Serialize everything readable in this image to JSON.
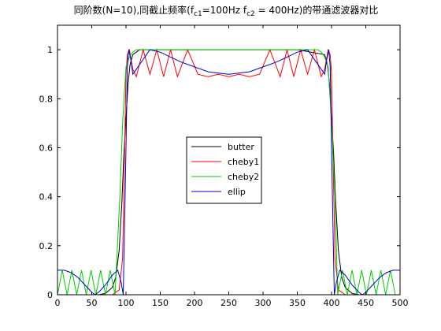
{
  "chart_data": {
    "type": "line",
    "title": {
      "prefix": "同阶数(N=10),同截止频率(f",
      "sub1": "c1",
      "mid": "=100Hz f",
      "sub2": "c2",
      "suffix": " = 400Hz)的带通滤波器对比"
    },
    "xlabel": "",
    "ylabel": "",
    "xlim": [
      0,
      500
    ],
    "ylim": [
      0,
      1.1
    ],
    "xticks": [
      0,
      50,
      100,
      150,
      200,
      250,
      300,
      350,
      400,
      450,
      500
    ],
    "yticks": [
      0,
      0.2,
      0.4,
      0.6,
      0.8,
      1
    ],
    "ytick_labels": [
      "0",
      "0.2",
      "0.4",
      "0.6",
      "0.8",
      "1"
    ],
    "grid": false,
    "legend": {
      "position": "center",
      "entries": [
        "butter",
        "cheby1",
        "cheby2",
        "ellip"
      ]
    },
    "filter_params": {
      "order": 10,
      "fc1": 100,
      "fc2": 400
    },
    "series": [
      {
        "name": "butter",
        "color": "#000000",
        "x": [
          0,
          60,
          70,
          80,
          85,
          90,
          94,
          97,
          100,
          103,
          106,
          110,
          120,
          150,
          250,
          350,
          390,
          394,
          397,
          400,
          403,
          406,
          410,
          415,
          420,
          430,
          440,
          500
        ],
        "y": [
          0,
          0,
          0.005,
          0.03,
          0.07,
          0.18,
          0.38,
          0.58,
          0.72,
          0.86,
          0.94,
          0.98,
          1,
          1,
          1,
          1,
          0.98,
          0.94,
          0.86,
          0.72,
          0.58,
          0.38,
          0.18,
          0.07,
          0.03,
          0.005,
          0,
          0
        ]
      },
      {
        "name": "cheby1",
        "color": "#ff0000",
        "x": [
          0,
          80,
          90,
          95,
          98,
          100,
          102,
          105,
          110,
          115,
          125,
          135,
          145,
          155,
          165,
          175,
          190,
          205,
          220,
          235,
          250,
          265,
          280,
          295,
          310,
          325,
          335,
          345,
          355,
          365,
          375,
          385,
          390,
          395,
          398,
          400,
          402,
          405,
          410,
          420,
          500
        ],
        "y": [
          0,
          0,
          0.02,
          0.15,
          0.6,
          0.9,
          0.98,
          1,
          0.92,
          0.89,
          1,
          0.9,
          1,
          0.89,
          1,
          0.89,
          1,
          0.9,
          0.89,
          0.9,
          0.89,
          0.9,
          0.89,
          0.9,
          1,
          0.89,
          1,
          0.89,
          1,
          0.9,
          1,
          0.89,
          0.92,
          1,
          0.98,
          0.9,
          0.6,
          0.15,
          0.02,
          0,
          0
        ]
      },
      {
        "name": "cheby2",
        "color": "#00cc00",
        "x": [
          0,
          7,
          14,
          21,
          28,
          35,
          42,
          49,
          56,
          63,
          70,
          77,
          84,
          91,
          95,
          100,
          105,
          110,
          115,
          120,
          150,
          250,
          350,
          380,
          385,
          390,
          395,
          400,
          405,
          409,
          416,
          423,
          430,
          437,
          444,
          451,
          458,
          465,
          472,
          479,
          486,
          493,
          500
        ],
        "y": [
          0,
          0.1,
          0,
          0.1,
          0,
          0.1,
          0,
          0.1,
          0,
          0.1,
          0,
          0.1,
          0,
          0.4,
          0.7,
          0.93,
          0.97,
          0.99,
          1,
          1,
          1,
          1,
          1,
          1,
          0.99,
          0.97,
          0.93,
          0.7,
          0.4,
          0,
          0.1,
          0,
          0.1,
          0,
          0.1,
          0,
          0.1,
          0,
          0.1,
          0,
          0.1,
          0,
          0
        ]
      },
      {
        "name": "ellip",
        "color": "#0000cc",
        "x": [
          0,
          10,
          20,
          30,
          40,
          50,
          55,
          60,
          70,
          80,
          88,
          93,
          96,
          98,
          100,
          102,
          104,
          107,
          110,
          120,
          135,
          150,
          165,
          180,
          200,
          220,
          250,
          280,
          300,
          320,
          335,
          350,
          365,
          380,
          390,
          393,
          396,
          398,
          400,
          402,
          404,
          407,
          412,
          420,
          430,
          440,
          445,
          450,
          460,
          470,
          480,
          490,
          500
        ],
        "y": [
          0.1,
          0.1,
          0.09,
          0.07,
          0.04,
          0.01,
          0,
          0.01,
          0.04,
          0.08,
          0.1,
          0.05,
          0,
          0.3,
          0.6,
          0.93,
          1,
          0.96,
          0.9,
          0.94,
          1,
          0.99,
          0.97,
          0.95,
          0.93,
          0.91,
          0.9,
          0.91,
          0.93,
          0.95,
          0.97,
          0.99,
          1,
          0.94,
          0.9,
          0.96,
          1,
          0.93,
          0.6,
          0.3,
          0,
          0.05,
          0.1,
          0.08,
          0.04,
          0.01,
          0,
          0.01,
          0.04,
          0.07,
          0.09,
          0.1,
          0.1
        ]
      }
    ]
  }
}
